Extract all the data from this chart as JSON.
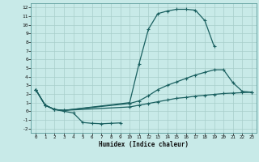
{
  "background_color": "#c8eae8",
  "grid_color": "#a8ceca",
  "line_color": "#1a6060",
  "xlabel": "Humidex (Indice chaleur)",
  "xlim": [
    -0.5,
    23.5
  ],
  "ylim": [
    -2.5,
    12.5
  ],
  "xticks": [
    0,
    1,
    2,
    3,
    4,
    5,
    6,
    7,
    8,
    9,
    10,
    11,
    12,
    13,
    14,
    15,
    16,
    17,
    18,
    19,
    20,
    21,
    22,
    23
  ],
  "yticks": [
    -2,
    -1,
    0,
    1,
    2,
    3,
    4,
    5,
    6,
    7,
    8,
    9,
    10,
    11,
    12
  ],
  "curve1_x": [
    0,
    1,
    2,
    3,
    4,
    5,
    6,
    7,
    8,
    9
  ],
  "curve1_y": [
    2.5,
    0.7,
    0.2,
    0.0,
    -0.2,
    -1.3,
    -1.4,
    -1.45,
    -1.4,
    -1.35
  ],
  "curve2_x": [
    0,
    1,
    2,
    3,
    10,
    11,
    12,
    13,
    14,
    15,
    16,
    17,
    18,
    19
  ],
  "curve2_y": [
    2.5,
    0.7,
    0.2,
    0.1,
    1.0,
    5.5,
    9.5,
    11.3,
    11.6,
    11.8,
    11.8,
    11.7,
    10.5,
    7.5
  ],
  "curve3_x": [
    0,
    1,
    2,
    3,
    10,
    11,
    12,
    13,
    14,
    15,
    16,
    17,
    18,
    19,
    20,
    21,
    22,
    23
  ],
  "curve3_y": [
    2.5,
    0.7,
    0.2,
    0.1,
    0.9,
    1.2,
    1.8,
    2.5,
    3.0,
    3.4,
    3.8,
    4.2,
    4.5,
    4.8,
    4.8,
    3.3,
    2.3,
    2.2
  ],
  "curve4_x": [
    0,
    1,
    2,
    3,
    10,
    11,
    12,
    13,
    14,
    15,
    16,
    17,
    18,
    19,
    20,
    21,
    22,
    23
  ],
  "curve4_y": [
    2.5,
    0.7,
    0.2,
    0.1,
    0.5,
    0.7,
    0.9,
    1.1,
    1.3,
    1.5,
    1.6,
    1.75,
    1.85,
    1.95,
    2.05,
    2.1,
    2.15,
    2.2
  ]
}
